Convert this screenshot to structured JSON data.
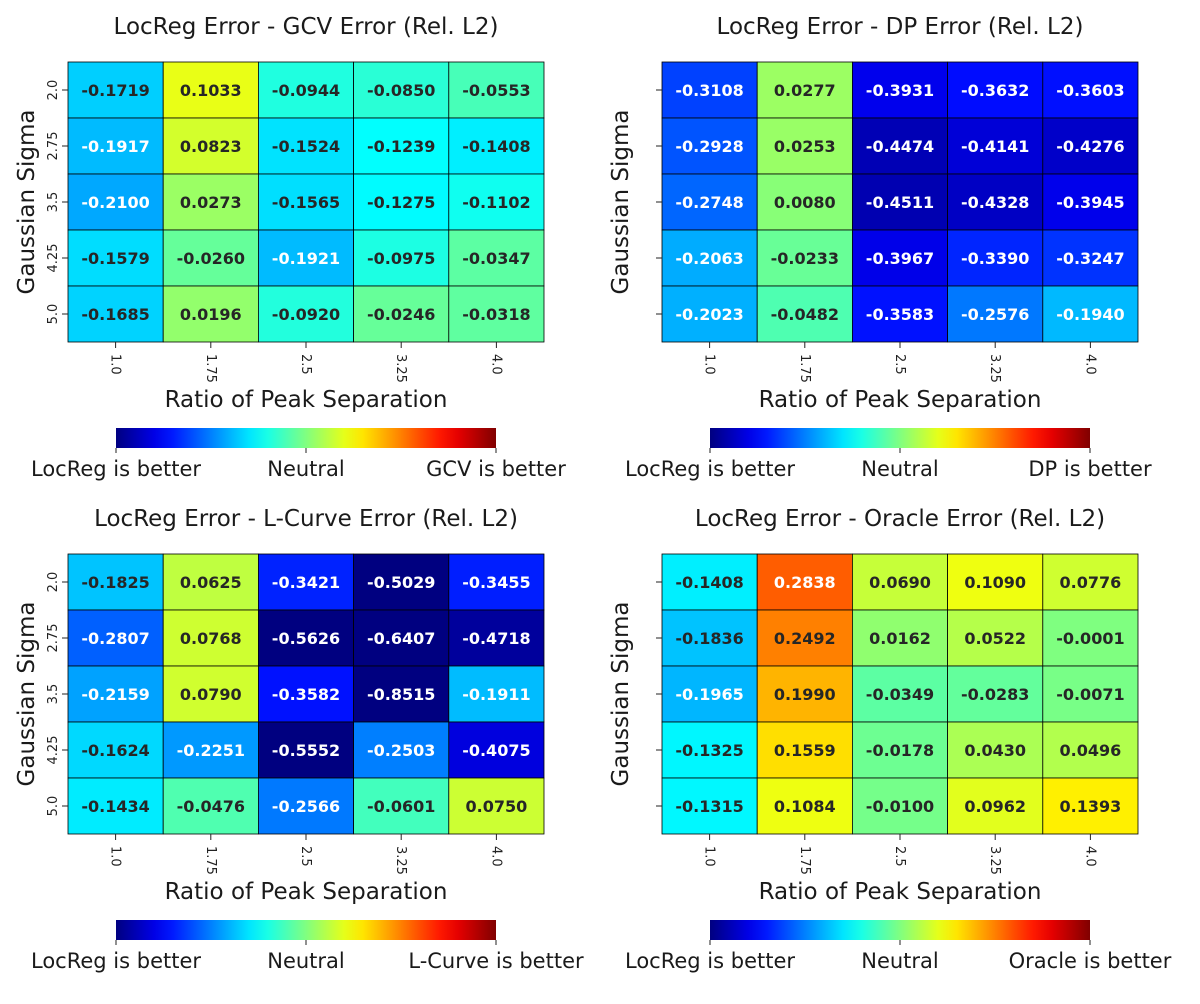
{
  "chart_data": [
    {
      "type": "heatmap",
      "title": "LocReg Error - GCV Error (Rel. L2)",
      "xlabel": "Ratio of Peak Separation",
      "ylabel": "Gaussian Sigma",
      "x_categories": [
        "1.0",
        "1.75",
        "2.5",
        "3.25",
        "4.0"
      ],
      "y_categories": [
        "2.0",
        "2.75",
        "3.5",
        "4.25",
        "5.0"
      ],
      "values": [
        [
          -0.1719,
          0.1033,
          -0.0944,
          -0.085,
          -0.0553
        ],
        [
          -0.1917,
          0.0823,
          -0.1524,
          -0.1239,
          -0.1408
        ],
        [
          -0.21,
          0.0273,
          -0.1565,
          -0.1275,
          -0.1102
        ],
        [
          -0.1579,
          -0.026,
          -0.1921,
          -0.0975,
          -0.0347
        ],
        [
          -0.1685,
          0.0196,
          -0.092,
          -0.0246,
          -0.0318
        ]
      ],
      "labels": [
        [
          "-0.1719",
          "0.1033",
          "-0.0944",
          "-0.0850",
          "-0.0553"
        ],
        [
          "-0.1917",
          "0.0823",
          "-0.1524",
          "-0.1239",
          "-0.1408"
        ],
        [
          "-0.2100",
          "0.0273",
          "-0.1565",
          "-0.1275",
          "-0.1102"
        ],
        [
          "-0.1579",
          "-0.0260",
          "-0.1921",
          "-0.0975",
          "-0.0347"
        ],
        [
          "-0.1685",
          "0.0196",
          "-0.0920",
          "-0.0246",
          "-0.0318"
        ]
      ],
      "colormap": "jet",
      "vlim": [
        -0.5,
        0.5
      ],
      "colorbar": {
        "left": "LocReg is better",
        "center": "Neutral",
        "right": "GCV is better"
      }
    },
    {
      "type": "heatmap",
      "title": "LocReg Error - DP Error (Rel. L2)",
      "xlabel": "Ratio of Peak Separation",
      "ylabel": "Gaussian Sigma",
      "x_categories": [
        "1.0",
        "1.75",
        "2.5",
        "3.25",
        "4.0"
      ],
      "y_categories": [],
      "values": [
        [
          -0.3108,
          0.0277,
          -0.3931,
          -0.3632,
          -0.3603
        ],
        [
          -0.2928,
          0.0253,
          -0.4474,
          -0.4141,
          -0.4276
        ],
        [
          -0.2748,
          0.008,
          -0.4511,
          -0.4328,
          -0.3945
        ],
        [
          -0.2063,
          -0.0233,
          -0.3967,
          -0.339,
          -0.3247
        ],
        [
          -0.2023,
          -0.0482,
          -0.3583,
          -0.2576,
          -0.194
        ]
      ],
      "labels": [
        [
          "-0.3108",
          "0.0277",
          "-0.3931",
          "-0.3632",
          "-0.3603"
        ],
        [
          "-0.2928",
          "0.0253",
          "-0.4474",
          "-0.4141",
          "-0.4276"
        ],
        [
          "-0.2748",
          "0.0080",
          "-0.4511",
          "-0.4328",
          "-0.3945"
        ],
        [
          "-0.2063",
          "-0.0233",
          "-0.3967",
          "-0.3390",
          "-0.3247"
        ],
        [
          "-0.2023",
          "-0.0482",
          "-0.3583",
          "-0.2576",
          "-0.1940"
        ]
      ],
      "colormap": "jet",
      "vlim": [
        -0.5,
        0.5
      ],
      "colorbar": {
        "left": "LocReg is better",
        "center": "Neutral",
        "right": "DP is better"
      }
    },
    {
      "type": "heatmap",
      "title": "LocReg Error - L-Curve Error (Rel. L2)",
      "xlabel": "Ratio of Peak Separation",
      "ylabel": "Gaussian Sigma",
      "x_categories": [
        "1.0",
        "1.75",
        "2.5",
        "3.25",
        "4.0"
      ],
      "y_categories": [
        "2.0",
        "2.75",
        "3.5",
        "4.25",
        "5.0"
      ],
      "values": [
        [
          -0.1825,
          0.0625,
          -0.3421,
          -0.5029,
          -0.3455
        ],
        [
          -0.2807,
          0.0768,
          -0.5626,
          -0.6407,
          -0.4718
        ],
        [
          -0.2159,
          0.079,
          -0.3582,
          -0.8515,
          -0.1911
        ],
        [
          -0.1624,
          -0.2251,
          -0.5552,
          -0.2503,
          -0.4075
        ],
        [
          -0.1434,
          -0.0476,
          -0.2566,
          -0.0601,
          0.075
        ]
      ],
      "labels": [
        [
          "-0.1825",
          "0.0625",
          "-0.3421",
          "-0.5029",
          "-0.3455"
        ],
        [
          "-0.2807",
          "0.0768",
          "-0.5626",
          "-0.6407",
          "-0.4718"
        ],
        [
          "-0.2159",
          "0.0790",
          "-0.3582",
          "-0.8515",
          "-0.1911"
        ],
        [
          "-0.1624",
          "-0.2251",
          "-0.5552",
          "-0.2503",
          "-0.4075"
        ],
        [
          "-0.1434",
          "-0.0476",
          "-0.2566",
          "-0.0601",
          "0.0750"
        ]
      ],
      "colormap": "jet",
      "vlim": [
        -0.5,
        0.5
      ],
      "colorbar": {
        "left": "LocReg is better",
        "center": "Neutral",
        "right": "L-Curve is better"
      }
    },
    {
      "type": "heatmap",
      "title": "LocReg Error - Oracle Error (Rel. L2)",
      "xlabel": "Ratio of Peak Separation",
      "ylabel": "Gaussian Sigma",
      "x_categories": [
        "1.0",
        "1.75",
        "2.5",
        "3.25",
        "4.0"
      ],
      "y_categories": [],
      "values": [
        [
          -0.1408,
          0.2838,
          0.069,
          0.109,
          0.0776
        ],
        [
          -0.1836,
          0.2492,
          0.0162,
          0.0522,
          -0.0001
        ],
        [
          -0.1965,
          0.199,
          -0.0349,
          -0.0283,
          -0.0071
        ],
        [
          -0.1325,
          0.1559,
          -0.0178,
          0.043,
          0.0496
        ],
        [
          -0.1315,
          0.1084,
          -0.01,
          0.0962,
          0.1393
        ]
      ],
      "labels": [
        [
          "-0.1408",
          "0.2838",
          "0.0690",
          "0.1090",
          "0.0776"
        ],
        [
          "-0.1836",
          "0.2492",
          "0.0162",
          "0.0522",
          "-0.0001"
        ],
        [
          "-0.1965",
          "0.1990",
          "-0.0349",
          "-0.0283",
          "-0.0071"
        ],
        [
          "-0.1325",
          "0.1559",
          "-0.0178",
          "0.0430",
          "0.0496"
        ],
        [
          "-0.1315",
          "0.1084",
          "-0.0100",
          "0.0962",
          "0.1393"
        ]
      ],
      "colormap": "jet",
      "vlim": [
        -0.5,
        0.5
      ],
      "colorbar": {
        "left": "LocReg is better",
        "center": "Neutral",
        "right": "Oracle is better"
      }
    }
  ]
}
